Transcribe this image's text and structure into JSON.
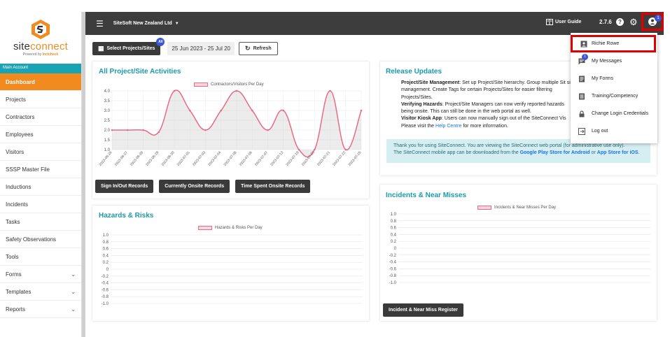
{
  "brand": {
    "name_a": "site",
    "name_b": "connect",
    "powered_by": "Powered by",
    "powered_brand": "Incicheck"
  },
  "sidebar": {
    "account_label": "Main Account",
    "items": [
      {
        "label": "Dashboard",
        "active": true
      },
      {
        "label": "Projects"
      },
      {
        "label": "Contractors"
      },
      {
        "label": "Employees"
      },
      {
        "label": "Visitors"
      },
      {
        "label": "SSSP Master File"
      },
      {
        "label": "Inductions"
      },
      {
        "label": "Incidents"
      },
      {
        "label": "Tasks"
      },
      {
        "label": "Safety Observations"
      },
      {
        "label": "Tools"
      },
      {
        "label": "Forms",
        "has_chevron": true
      },
      {
        "label": "Templates",
        "has_chevron": true
      },
      {
        "label": "Reports",
        "has_chevron": true
      }
    ]
  },
  "topbar": {
    "company": "SiteSoft New Zealand Ltd",
    "user_guide": "User Guide",
    "version": "2.7.6",
    "notification_count": "1"
  },
  "toolbar": {
    "select_label": "Select Projects/Sites",
    "select_badge": "All",
    "date_range": "25 Jun 2023 - 25 Jul 20",
    "refresh_label": "Refresh"
  },
  "activities": {
    "title": "All Project/Site Activities",
    "legend": "Contractors/Visitors Per Day",
    "buttons": [
      "Sign In/Out Records",
      "Currently Onsite Records",
      "Time Spent Onsite Records"
    ]
  },
  "hazards": {
    "title": "Hazards & Risks",
    "legend": "Hazards & Risks Per Day"
  },
  "release": {
    "title": "Release Updates",
    "items": [
      {
        "bold": "Project/Site Management",
        "text": ": Set up Project/Site hierarchy. Group multiple Sit site management. Create Tags for certain Projects/Sites for easier filtering Projects/Sites."
      },
      {
        "bold": "Verifying Hazards",
        "text": ": Project/Site Managers can now verify reported hazards being onsite. This can still be done in the web portal as well."
      },
      {
        "bold": "Visitor Kiosk App",
        "text": ": Users can now manually sign out of the SiteConnect Vis"
      },
      {
        "bold": "",
        "text": "Please visit the ",
        "link": "Help Centre",
        "after": " for more information."
      }
    ],
    "info_line1": "Thank you for using SiteConnect. You are viewing the SiteConnect web portal (for administrative use only).",
    "info_line2_pre": "The SiteConnect mobile app can be downloaded from the ",
    "info_link1": "Google Play Store for Android",
    "info_mid": " or ",
    "info_link2": "App Store for iOS",
    "info_end": "."
  },
  "incidents": {
    "title": "Incidents & Near Misses",
    "legend": "Incidents & Near Misses Per Day",
    "button": "Incident & Near Miss Register"
  },
  "user_menu": {
    "items": [
      {
        "label": "Richie Rowe",
        "icon": "person-icon"
      },
      {
        "label": "My Messages",
        "icon": "message-icon",
        "badge": "1"
      },
      {
        "label": "My Forms",
        "icon": "form-icon"
      },
      {
        "label": "Training/Competency",
        "icon": "training-icon"
      },
      {
        "label": "Change Login Credentials",
        "icon": "lock-icon"
      },
      {
        "label": "Log out",
        "icon": "logout-icon"
      }
    ]
  },
  "chart_data": [
    {
      "type": "line",
      "title": "",
      "series": [
        {
          "name": "Contractors/Visitors Per Day",
          "values": [
            2.0,
            2.0,
            2.0,
            1.9,
            4.0,
            3.0,
            2.0,
            3.0,
            4.0,
            3.0,
            2.0,
            3.0,
            1.0,
            1.0,
            4.0,
            1.0,
            3.0
          ]
        }
      ],
      "categories": [
        "2023-06-26",
        "2023-06-27",
        "2023-06-28",
        "2023-06-29",
        "2023-06-30",
        "2023-07-01",
        "2023-07-03",
        "2023-07-04",
        "2023-07-05",
        "2023-07-06",
        "2023-07-07",
        "2023-07-13",
        "2023-07-19",
        "2023-07-20",
        "2023-07-21",
        "2023-07-22",
        "2023-07-25"
      ],
      "y_ticks": [
        "4.0",
        "3.5",
        "3.0",
        "2.5",
        "2.0",
        "1.5",
        "1.0"
      ],
      "ylim": [
        1.0,
        4.0
      ]
    },
    {
      "type": "line",
      "title": "",
      "series": [
        {
          "name": "Hazards & Risks Per Day",
          "values": []
        }
      ],
      "y_ticks": [
        "1.0",
        "0.8",
        "0.6",
        "0.4",
        "0.2",
        "0",
        "-0.2",
        "-0.4",
        "-0.6",
        "-0.8",
        "-1.0"
      ],
      "ylim": [
        -1.0,
        1.0
      ]
    },
    {
      "type": "line",
      "title": "",
      "series": [
        {
          "name": "Incidents & Near Misses Per Day",
          "values": []
        }
      ],
      "y_ticks": [
        "1.0",
        "0.8",
        "0.6",
        "0.4",
        "0.2",
        "0",
        "-0.2",
        "-0.4",
        "-0.6",
        "-0.8",
        "-1.0"
      ],
      "ylim": [
        -1.0,
        1.0
      ]
    }
  ]
}
